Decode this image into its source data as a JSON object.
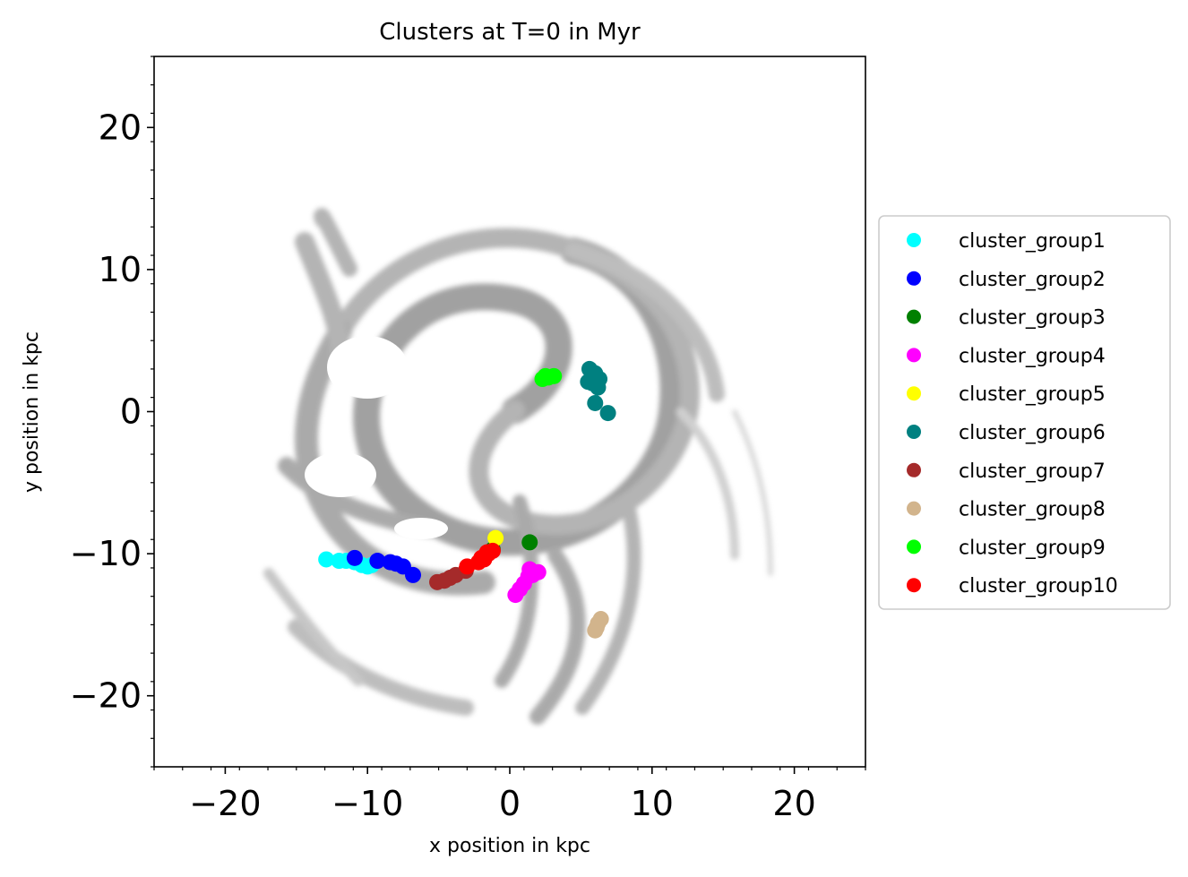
{
  "chart_data": {
    "type": "scatter",
    "title": "Clusters at T=0 in Myr",
    "xlabel": "x position in kpc",
    "ylabel": "y position in kpc",
    "xlim": [
      -25,
      25
    ],
    "ylim": [
      -25,
      25
    ],
    "xticks": [
      -20,
      -10,
      0,
      10,
      20
    ],
    "yticks": [
      -20,
      -10,
      0,
      10,
      20
    ],
    "xtick_labels": [
      "−20",
      "−10",
      "0",
      "10",
      "20"
    ],
    "ytick_labels": [
      "−20",
      "−10",
      "0",
      "10",
      "20"
    ],
    "minor_ticks": true,
    "legend_position": "center-right outside plot",
    "background": "grayscale gas density map of a spiral galaxy",
    "series": [
      {
        "name": "cluster_group1",
        "color": "#00ffff",
        "x": [
          -12.9,
          -12.0,
          -11.5,
          -10.9,
          -10.4,
          -10.0,
          -9.7
        ],
        "y": [
          -10.4,
          -10.5,
          -10.5,
          -10.6,
          -10.8,
          -10.9,
          -10.8
        ]
      },
      {
        "name": "cluster_group2",
        "color": "#0000ff",
        "x": [
          -10.9,
          -9.3,
          -8.4,
          -8.0,
          -7.5,
          -6.8
        ],
        "y": [
          -10.3,
          -10.5,
          -10.6,
          -10.7,
          -10.9,
          -11.5
        ]
      },
      {
        "name": "cluster_group3",
        "color": "#008000",
        "x": [
          1.4,
          -1.2
        ],
        "y": [
          -9.2,
          -9.7
        ]
      },
      {
        "name": "cluster_group4",
        "color": "#ff00ff",
        "x": [
          0.4,
          0.7,
          1.0,
          1.3,
          1.6,
          2.0,
          1.4
        ],
        "y": [
          -12.9,
          -12.5,
          -12.1,
          -11.6,
          -11.5,
          -11.3,
          -11.1
        ]
      },
      {
        "name": "cluster_group5",
        "color": "#ffff00",
        "x": [
          -1.0
        ],
        "y": [
          -8.9
        ]
      },
      {
        "name": "cluster_group6",
        "color": "#008080",
        "x": [
          5.6,
          6.0,
          6.3,
          5.8,
          6.2,
          6.0,
          6.9,
          5.5
        ],
        "y": [
          3.0,
          2.7,
          2.3,
          2.0,
          1.7,
          0.6,
          -0.1,
          2.1
        ]
      },
      {
        "name": "cluster_group7",
        "color": "#a52a2a",
        "x": [
          -5.1,
          -4.6,
          -4.2,
          -3.8,
          -3.1
        ],
        "y": [
          -12.0,
          -11.9,
          -11.7,
          -11.5,
          -11.2
        ]
      },
      {
        "name": "cluster_group8",
        "color": "#d2b48c",
        "x": [
          6.1,
          6.4,
          6.2,
          6.0
        ],
        "y": [
          -15.2,
          -14.6,
          -14.9,
          -15.4
        ]
      },
      {
        "name": "cluster_group9",
        "color": "#00ff00",
        "x": [
          2.3,
          2.7,
          3.1,
          2.5
        ],
        "y": [
          2.3,
          2.4,
          2.5,
          2.5
        ]
      },
      {
        "name": "cluster_group10",
        "color": "#ff0000",
        "x": [
          -3.0,
          -2.2,
          -1.8,
          -1.5,
          -1.2,
          -1.6,
          -2.0
        ],
        "y": [
          -10.9,
          -10.6,
          -10.4,
          -10.0,
          -9.8,
          -9.9,
          -10.3
        ]
      }
    ]
  }
}
